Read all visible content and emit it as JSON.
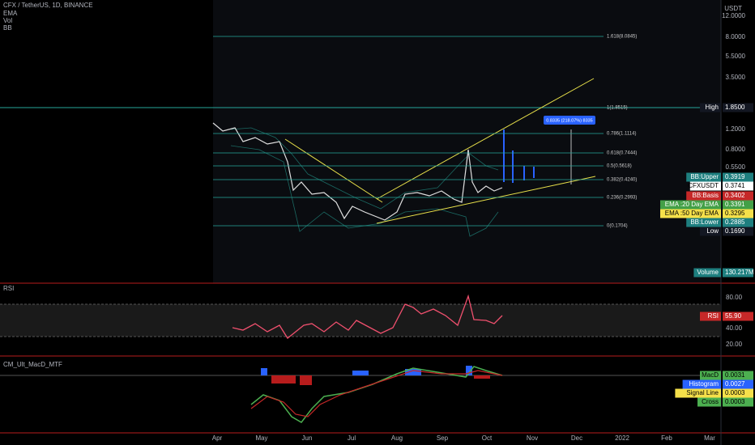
{
  "header": {
    "symbol": "CFX / TetherUS, 1D, BINANCE",
    "indicators": [
      "EMA",
      "Vol",
      "BB"
    ]
  },
  "price_axis": {
    "unit": "USDT",
    "labels": [
      "12.0000",
      "8.0000",
      "5.5000",
      "3.5000",
      "1.2000",
      "0.8000",
      "0.5500"
    ]
  },
  "fib_levels": [
    "1.618(8.0845)",
    "1(1.8515)",
    "0.786(1.1114)",
    "0.618(0.7444)",
    "0.5(0.5618)",
    "0.382(0.4240)",
    "0.236(0.2993)",
    "0(0.1704)"
  ],
  "measure_label": "0.8335 (218.07%) 8335",
  "price_tags": [
    {
      "name": "High",
      "value": "1.8500"
    },
    {
      "name": "BB:Upper",
      "value": "0.3919"
    },
    {
      "name": "CFXUSDT",
      "value": "0.3741"
    },
    {
      "name": "BB:Basis",
      "value": "0.3402"
    },
    {
      "name": "EMA :20 Day EMA",
      "value": "0.3391"
    },
    {
      "name": "EMA :50 Day EMA",
      "value": "0.3295"
    },
    {
      "name": "BB:Lower",
      "value": "0.2885"
    },
    {
      "name": "Low",
      "value": "0.1690"
    },
    {
      "name": "Volume",
      "value": "130.217M"
    }
  ],
  "rsi": {
    "title": "RSI",
    "axis": [
      "80.00",
      "40.00",
      "20.00"
    ],
    "tag": {
      "name": "RSI",
      "value": "55.90"
    }
  },
  "macd": {
    "title": "CM_Ult_MacD_MTF",
    "tags": [
      {
        "name": "MacD",
        "value": "0.0031"
      },
      {
        "name": "Histogram",
        "value": "0.0027"
      },
      {
        "name": "Signal Line",
        "value": "0.0003"
      },
      {
        "name": "Cross",
        "value": "0.0003"
      }
    ]
  },
  "time_axis": [
    "Apr",
    "May",
    "Jun",
    "Jul",
    "Aug",
    "Sep",
    "Oct",
    "Nov",
    "Dec",
    "2022",
    "Feb",
    "Mar"
  ]
}
